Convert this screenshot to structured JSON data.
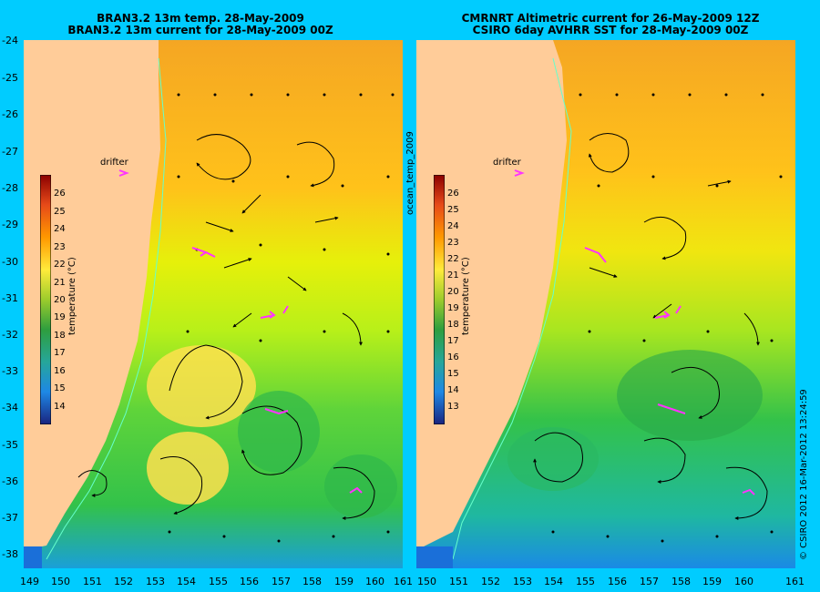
{
  "left_panel": {
    "title_line1": "BRAN3.2 13m temp. 28-May-2009",
    "title_line2": "BRAN3.2 13m current for 28-May-2009 00Z",
    "colorbar_label": "temperature (°C)",
    "colorbar_ticks": [
      "26",
      "25",
      "24",
      "23",
      "22",
      "21",
      "20",
      "19",
      "18",
      "17",
      "16",
      "15",
      "14"
    ],
    "drifter_label": "drifter"
  },
  "right_panel": {
    "title_line1": "CMRNRT Altimetric current for 26-May-2009 12Z",
    "title_line2": "CSIRO 6day AVHRR SST for 28-May-2009 00Z",
    "colorbar_label": "temperature (°C)",
    "colorbar_ticks": [
      "26",
      "25",
      "24",
      "23",
      "22",
      "21",
      "20",
      "19",
      "18",
      "17",
      "16",
      "15",
      "14",
      "13"
    ],
    "drifter_label": "drifter"
  },
  "mid_label": "ocean_temp_2009",
  "credit": "© CSIRO 2012   16-Mar-2012 13:24:59",
  "lat_ticks": [
    "-24",
    "-25",
    "-26",
    "-27",
    "-28",
    "-29",
    "-30",
    "-31",
    "-32",
    "-33",
    "-34",
    "-35",
    "-36",
    "-37",
    "-38"
  ],
  "lon_ticks_left": [
    "149",
    "150",
    "151",
    "152",
    "153",
    "154",
    "155",
    "156",
    "157",
    "158",
    "159",
    "160",
    "161"
  ],
  "lon_ticks_right": [
    "150",
    "151",
    "152",
    "153",
    "154",
    "155",
    "156",
    "157",
    "158",
    "159",
    "160",
    "161"
  ],
  "colors": {
    "background": "#00ccff",
    "land": "#ffcc99",
    "coast": "#66ffcc",
    "drifter": "#ff33ff",
    "arrow": "#000000"
  }
}
